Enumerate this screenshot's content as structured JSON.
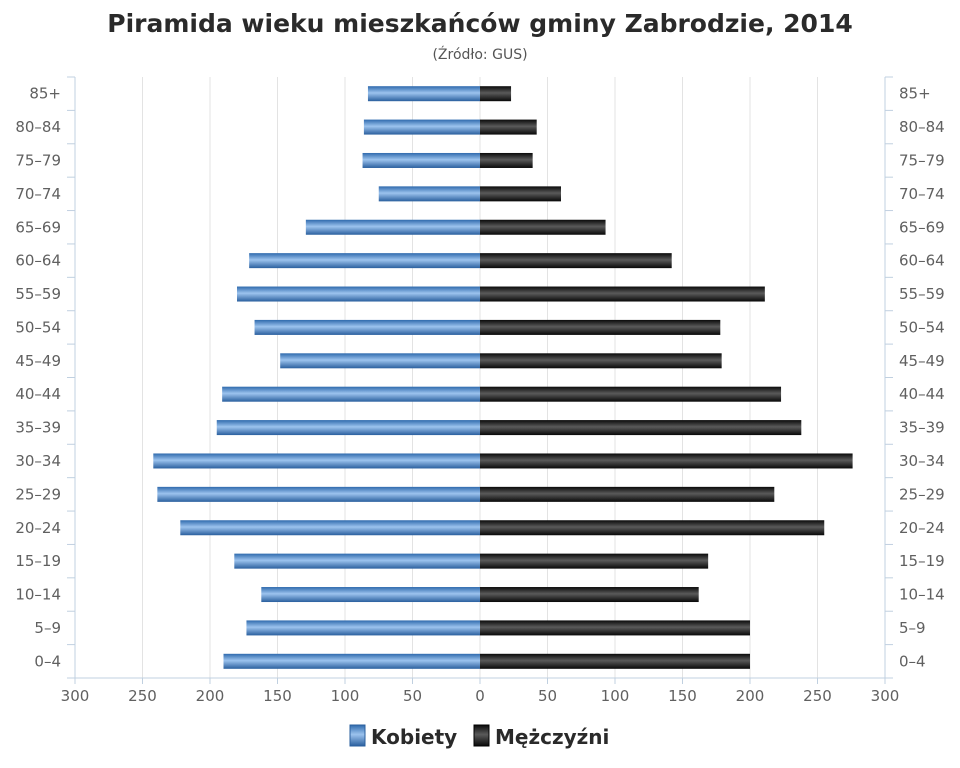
{
  "chart_data": {
    "type": "bar",
    "orientation": "horizontal",
    "title": "Piramida wieku mieszkańców gminy Zabrodzie, 2014",
    "subtitle": "(Źródło: GUS)",
    "categories": [
      "85+",
      "80–84",
      "75–79",
      "70–74",
      "65–69",
      "60–64",
      "55–59",
      "50–54",
      "45–49",
      "40–44",
      "35–39",
      "30–34",
      "25–29",
      "20–24",
      "15–19",
      "10–14",
      "5–9",
      "0–4"
    ],
    "series": [
      {
        "name": "Kobiety",
        "color": "#4a86c6",
        "values": [
          83,
          86,
          87,
          75,
          129,
          171,
          180,
          167,
          148,
          191,
          195,
          242,
          239,
          222,
          182,
          162,
          173,
          190
        ]
      },
      {
        "name": "Mężczyźni",
        "color": "#1c1c1c",
        "values": [
          23,
          42,
          39,
          60,
          93,
          142,
          211,
          178,
          179,
          223,
          238,
          276,
          218,
          255,
          169,
          162,
          200,
          200
        ]
      }
    ],
    "x_ticks": [
      "300",
      "250",
      "200",
      "150",
      "100",
      "50",
      "0",
      "50",
      "100",
      "150",
      "200",
      "250",
      "300"
    ],
    "xlim": [
      -300,
      300
    ],
    "grid": true,
    "legend_position": "bottom"
  }
}
